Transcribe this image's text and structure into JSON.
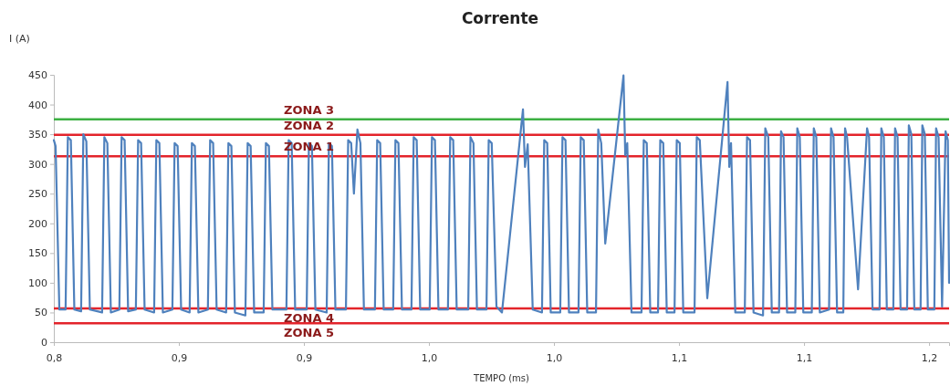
{
  "chart_data": {
    "type": "line",
    "title": "Corrente",
    "xlabel": "TEMPO (ms)",
    "ylabel": "I (A)",
    "xlim": [
      0.8,
      1.158
    ],
    "xticks": [
      {
        "value": 0.8,
        "label": "0,8"
      },
      {
        "value": 0.85,
        "label": "0,9"
      },
      {
        "value": 0.9,
        "label": "0,9"
      },
      {
        "value": 0.95,
        "label": "1,0"
      },
      {
        "value": 1.0,
        "label": "1,0"
      },
      {
        "value": 1.05,
        "label": "1,1"
      },
      {
        "value": 1.1,
        "label": "1,1"
      },
      {
        "value": 1.15,
        "label": "1,2"
      }
    ],
    "ylim": [
      0,
      450
    ],
    "yticks": [
      0,
      50,
      100,
      150,
      200,
      250,
      300,
      350,
      400,
      450
    ],
    "ref_lines": [
      {
        "axis": "y",
        "value": 375,
        "label": "ZONA 3",
        "color": "#3cb043"
      },
      {
        "axis": "y",
        "value": 349,
        "label": "ZONA 2",
        "color": "#e3242b"
      },
      {
        "axis": "y",
        "value": 313,
        "label": "ZONA 1",
        "color": "#e3242b"
      },
      {
        "axis": "y",
        "value": 57,
        "label": "ZONA 4",
        "color": "#e3242b"
      },
      {
        "axis": "y",
        "value": 32,
        "label": "ZONA 5",
        "color": "#e3242b"
      }
    ],
    "series": [
      {
        "color": "#4f81bd",
        "x": [
          0.8,
          0.8007,
          0.8022,
          0.8047,
          0.8056,
          0.8068,
          0.8082,
          0.8109,
          0.8118,
          0.813,
          0.8144,
          0.8193,
          0.8202,
          0.8214,
          0.8228,
          0.8262,
          0.8271,
          0.8283,
          0.8297,
          0.8328,
          0.8337,
          0.8349,
          0.8363,
          0.8401,
          0.841,
          0.8422,
          0.8436,
          0.8474,
          0.8483,
          0.8495,
          0.8509,
          0.8543,
          0.8552,
          0.8564,
          0.8578,
          0.8616,
          0.8625,
          0.8637,
          0.8651,
          0.8689,
          0.8698,
          0.871,
          0.8724,
          0.8766,
          0.8775,
          0.8787,
          0.8801,
          0.8839,
          0.8848,
          0.886,
          0.8874,
          0.893,
          0.8939,
          0.8951,
          0.8965,
          0.9011,
          0.902,
          0.9032,
          0.9046,
          0.9091,
          0.91,
          0.9112,
          0.9126,
          0.9168,
          0.9177,
          0.9189,
          0.92,
          0.9214,
          0.9226,
          0.924,
          0.9284,
          0.9293,
          0.9305,
          0.9319,
          0.9357,
          0.9366,
          0.9378,
          0.9392,
          0.943,
          0.9439,
          0.9451,
          0.9465,
          0.9503,
          0.9512,
          0.9524,
          0.9538,
          0.9576,
          0.9585,
          0.9597,
          0.9611,
          0.9657,
          0.9666,
          0.9678,
          0.9692,
          0.973,
          0.9739,
          0.9751,
          0.977,
          0.9792,
          0.9876,
          0.9884,
          0.9895,
          0.9915,
          0.9952,
          0.9961,
          0.9973,
          0.9987,
          1.0025,
          1.0034,
          1.0046,
          1.006,
          1.0098,
          1.0107,
          1.0119,
          1.0133,
          1.0168,
          1.0177,
          1.0189,
          1.0205,
          1.0278,
          1.0285,
          1.0293,
          1.031,
          1.035,
          1.0359,
          1.0371,
          1.0385,
          1.0416,
          1.0425,
          1.0437,
          1.0451,
          1.0482,
          1.0491,
          1.0503,
          1.0517,
          1.0562,
          1.0571,
          1.0583,
          1.0613,
          1.0694,
          1.0701,
          1.0708,
          1.0725,
          1.0763,
          1.0772,
          1.0784,
          1.0798,
          1.0836,
          1.0845,
          1.0857,
          1.0871,
          1.09,
          1.0908,
          1.0918,
          1.0932,
          1.0965,
          1.0973,
          1.0983,
          1.0997,
          1.1031,
          1.1039,
          1.1049,
          1.1063,
          1.11,
          1.1108,
          1.1118,
          1.1132,
          1.1157,
          1.1164,
          1.1172,
          1.1216,
          1.1252,
          1.126,
          1.1274,
          1.1302,
          1.1309,
          1.1319,
          1.1331,
          1.1357,
          1.1364,
          1.1374,
          1.1386,
          1.1412,
          1.1419,
          1.1429,
          1.1441,
          1.1466,
          1.1473,
          1.1483,
          1.1495,
          1.1521,
          1.1528,
          1.1538,
          1.1552,
          1.1566,
          1.1575,
          1.158
        ],
        "values": [
          340,
          330,
          55,
          55,
          345,
          340,
          55,
          52,
          350,
          338,
          55,
          50,
          345,
          335,
          50,
          55,
          345,
          340,
          52,
          55,
          340,
          335,
          55,
          50,
          340,
          335,
          50,
          55,
          335,
          330,
          55,
          50,
          335,
          330,
          50,
          55,
          340,
          335,
          55,
          50,
          335,
          330,
          50,
          45,
          335,
          330,
          50,
          50,
          335,
          330,
          55,
          55,
          340,
          335,
          55,
          55,
          335,
          330,
          55,
          50,
          335,
          330,
          55,
          55,
          340,
          335,
          250,
          358,
          335,
          55,
          55,
          340,
          335,
          55,
          55,
          340,
          335,
          55,
          55,
          345,
          340,
          55,
          55,
          345,
          340,
          55,
          55,
          345,
          340,
          55,
          55,
          345,
          335,
          55,
          55,
          340,
          335,
          60,
          50,
          392,
          295,
          333,
          55,
          50,
          340,
          335,
          50,
          50,
          345,
          340,
          50,
          50,
          345,
          340,
          50,
          50,
          358,
          335,
          166,
          449,
          315,
          335,
          50,
          50,
          340,
          335,
          50,
          50,
          340,
          335,
          50,
          50,
          340,
          335,
          50,
          50,
          345,
          340,
          74,
          438,
          295,
          335,
          50,
          50,
          345,
          340,
          50,
          45,
          360,
          345,
          50,
          50,
          355,
          345,
          50,
          50,
          360,
          345,
          50,
          50,
          360,
          345,
          50,
          55,
          360,
          345,
          50,
          50,
          360,
          345,
          89,
          360,
          345,
          55,
          55,
          360,
          345,
          55,
          55,
          360,
          345,
          55,
          55,
          365,
          350,
          55,
          55,
          365,
          350,
          55,
          55,
          360,
          345,
          60,
          355,
          340,
          100
        ]
      }
    ]
  }
}
